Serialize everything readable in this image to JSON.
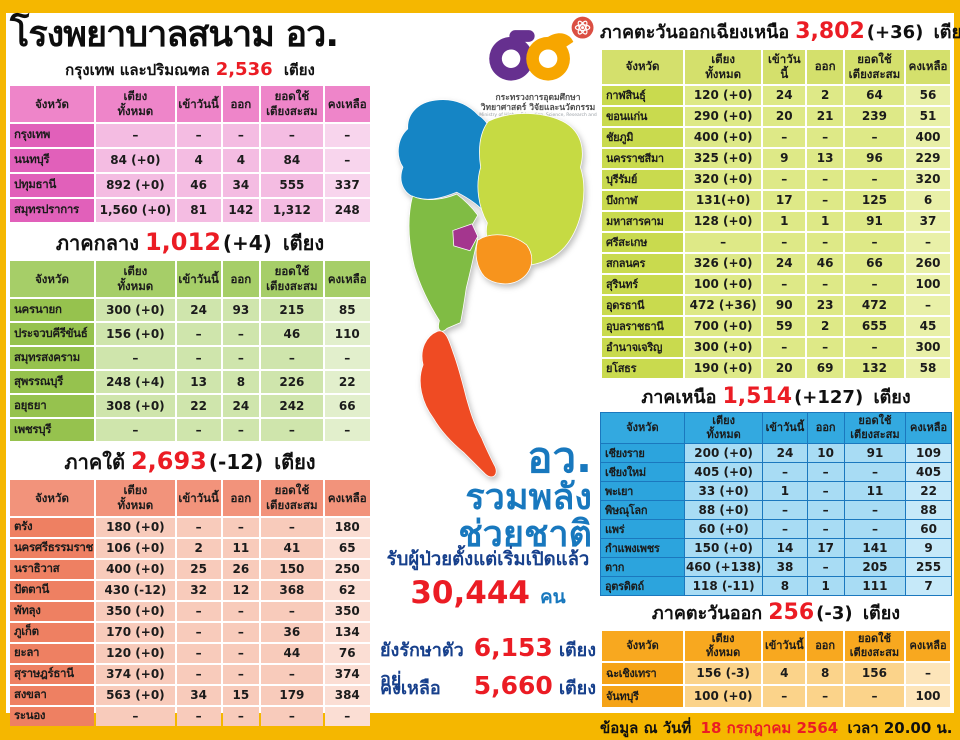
{
  "palette": {
    "frame_yellow": "#F5B700",
    "accent_red": "#EB1C24",
    "slogan_blue": "#1878BE",
    "navy_text": "#17408C",
    "theme_pink": "#EE85C9",
    "theme_green": "#A6CE68",
    "theme_salmon": "#F2937B",
    "theme_lime": "#D4E06C",
    "theme_blue": "#33A9E0",
    "theme_orange": "#F8A81F"
  },
  "header": {
    "title": "โรงพยาบาลสนาม อว."
  },
  "table_headers": [
    "จังหวัด",
    "เตียง\nทั้งหมด",
    "เข้าวันนี้",
    "ออก",
    "ยอดใช้\nเตียงสะสม",
    "คงเหลือ"
  ],
  "chart_data": [
    {
      "type": "table",
      "id": "bangkok-metro",
      "title": "กรุงเทพ และปริมณฑล",
      "total_beds": "2,536",
      "change": "",
      "unit": "เตียง",
      "theme_color": "#EE85C9",
      "columns": [
        "จังหวัด",
        "เตียง\nทั้งหมด",
        "เข้าวันนี้",
        "ออก",
        "ยอดใช้\nเตียงสะสม",
        "คงเหลือ"
      ],
      "rows": [
        [
          "กรุงเทพ",
          "–",
          "–",
          "–",
          "–",
          "–"
        ],
        [
          "นนทบุรี",
          "84 (+0)",
          "4",
          "4",
          "84",
          "–"
        ],
        [
          "ปทุมธานี",
          "892 (+0)",
          "46",
          "34",
          "555",
          "337"
        ],
        [
          "สมุทรปราการ",
          "1,560 (+0)",
          "81",
          "142",
          "1,312",
          "248"
        ]
      ]
    },
    {
      "type": "table",
      "id": "central",
      "title": "ภาคกลาง",
      "total_beds": "1,012",
      "change": "(+4)",
      "unit": "เตียง",
      "theme_color": "#A6CE68",
      "columns": [
        "จังหวัด",
        "เตียง\nทั้งหมด",
        "เข้าวันนี้",
        "ออก",
        "ยอดใช้\nเตียงสะสม",
        "คงเหลือ"
      ],
      "rows": [
        [
          "นครนายก",
          "300 (+0)",
          "24",
          "93",
          "215",
          "85"
        ],
        [
          "ประจวบคีรีขันธ์",
          "156 (+0)",
          "–",
          "–",
          "46",
          "110"
        ],
        [
          "สมุทรสงคราม",
          "–",
          "–",
          "–",
          "–",
          "–"
        ],
        [
          "สุพรรณบุรี",
          "248 (+4)",
          "13",
          "8",
          "226",
          "22"
        ],
        [
          "อยุธยา",
          "308 (+0)",
          "22",
          "24",
          "242",
          "66"
        ],
        [
          "เพชรบุรี",
          "–",
          "–",
          "–",
          "–",
          "–"
        ]
      ]
    },
    {
      "type": "table",
      "id": "south",
      "title": "ภาคใต้",
      "total_beds": "2,693",
      "change": "(-12)",
      "unit": "เตียง",
      "theme_color": "#F2937B",
      "columns": [
        "จังหวัด",
        "เตียง\nทั้งหมด",
        "เข้าวันนี้",
        "ออก",
        "ยอดใช้\nเตียงสะสม",
        "คงเหลือ"
      ],
      "rows": [
        [
          "ตรัง",
          "180 (+0)",
          "–",
          "–",
          "–",
          "180"
        ],
        [
          "นครศรีธรรมราช",
          "106 (+0)",
          "2",
          "11",
          "41",
          "65"
        ],
        [
          "นราธิวาส",
          "400 (+0)",
          "25",
          "26",
          "150",
          "250"
        ],
        [
          "ปัตตานี",
          "430 (-12)",
          "32",
          "12",
          "368",
          "62"
        ],
        [
          "พัทลุง",
          "350 (+0)",
          "–",
          "–",
          "–",
          "350"
        ],
        [
          "ภูเก็ต",
          "170 (+0)",
          "–",
          "–",
          "36",
          "134"
        ],
        [
          "ยะลา",
          "120 (+0)",
          "–",
          "–",
          "44",
          "76"
        ],
        [
          "สุราษฎร์ธานี",
          "374 (+0)",
          "–",
          "–",
          "–",
          "374"
        ],
        [
          "สงขลา",
          "563 (+0)",
          "34",
          "15",
          "179",
          "384"
        ],
        [
          "ระนอง",
          "–",
          "–",
          "–",
          "–",
          "–"
        ]
      ]
    },
    {
      "type": "table",
      "id": "northeast",
      "title": "ภาคตะวันออกเฉียงเหนือ",
      "total_beds": "3,802",
      "change": "(+36)",
      "unit": "เตียง",
      "theme_color": "#D4E06C",
      "columns": [
        "จังหวัด",
        "เตียง\nทั้งหมด",
        "เข้าวันนี้",
        "ออก",
        "ยอดใช้\nเตียงสะสม",
        "คงเหลือ"
      ],
      "rows": [
        [
          "กาฬสินธุ์",
          "120 (+0)",
          "24",
          "2",
          "64",
          "56"
        ],
        [
          "ขอนแก่น",
          "290 (+0)",
          "20",
          "21",
          "239",
          "51"
        ],
        [
          "ชัยภูมิ",
          "400 (+0)",
          "–",
          "–",
          "–",
          "400"
        ],
        [
          "นครราชสีมา",
          "325 (+0)",
          "9",
          "13",
          "96",
          "229"
        ],
        [
          "บุรีรัมย์",
          "320 (+0)",
          "–",
          "–",
          "–",
          "320"
        ],
        [
          "บึงกาฬ",
          "131(+0)",
          "17",
          "–",
          "125",
          "6"
        ],
        [
          "มหาสารคาม",
          "128 (+0)",
          "1",
          "1",
          "91",
          "37"
        ],
        [
          "ศรีสะเกษ",
          "–",
          "–",
          "–",
          "–",
          "–"
        ],
        [
          "สกลนคร",
          "326 (+0)",
          "24",
          "46",
          "66",
          "260"
        ],
        [
          "สุรินทร์",
          "100 (+0)",
          "–",
          "–",
          "–",
          "100"
        ],
        [
          "อุดรธานี",
          "472 (+36)",
          "90",
          "23",
          "472",
          "–"
        ],
        [
          "อุบลราชธานี",
          "700 (+0)",
          "59",
          "2",
          "655",
          "45"
        ],
        [
          "อำนาจเจริญ",
          "300 (+0)",
          "–",
          "–",
          "–",
          "300"
        ],
        [
          "ยโสธร",
          "190 (+0)",
          "20",
          "69",
          "132",
          "58"
        ]
      ]
    },
    {
      "type": "table",
      "id": "north",
      "title": "ภาคเหนือ",
      "total_beds": "1,514",
      "change": "(+127)",
      "unit": "เตียง",
      "theme_color": "#33A9E0",
      "columns": [
        "จังหวัด",
        "เตียง\nทั้งหมด",
        "เข้าวันนี้",
        "ออก",
        "ยอดใช้\nเตียงสะสม",
        "คงเหลือ"
      ],
      "rows": [
        [
          "เชียงราย",
          "200 (+0)",
          "24",
          "10",
          "91",
          "109"
        ],
        [
          "เชียงใหม่",
          "405 (+0)",
          "–",
          "–",
          "–",
          "405"
        ],
        [
          "พะเยา",
          "33 (+0)",
          "1",
          "–",
          "11",
          "22"
        ],
        [
          "พิษณุโลก",
          "88 (+0)",
          "–",
          "–",
          "–",
          "88"
        ],
        [
          "แพร่",
          "60 (+0)",
          "–",
          "–",
          "–",
          "60"
        ],
        [
          "กำแพงเพชร",
          "150 (+0)",
          "14",
          "17",
          "141",
          "9"
        ],
        [
          "ตาก",
          "460 (+138)",
          "38",
          "–",
          "205",
          "255"
        ],
        [
          "อุตรดิตถ์",
          "118 (-11)",
          "8",
          "1",
          "111",
          "7"
        ]
      ]
    },
    {
      "type": "table",
      "id": "east",
      "title": "ภาคตะวันออก",
      "total_beds": "256",
      "change": "(-3)",
      "unit": "เตียง",
      "theme_color": "#F8A81F",
      "columns": [
        "จังหวัด",
        "เตียง\nทั้งหมด",
        "เข้าวันนี้",
        "ออก",
        "ยอดใช้\nเตียงสะสม",
        "คงเหลือ"
      ],
      "rows": [
        [
          "ฉะเชิงเทรา",
          "156 (-3)",
          "4",
          "8",
          "156",
          "–"
        ],
        [
          "จันทบุรี",
          "100 (+0)",
          "–",
          "–",
          "–",
          "100"
        ]
      ]
    }
  ],
  "ministry_logo": {
    "caption": "กระทรวงการอุดมศึกษา\nวิทยาศาสตร์ วิจัยและนวัตกรรม",
    "caption_en": "Ministry of Higher Education, Science, Research and Innovation"
  },
  "map": {
    "region_colors": {
      "north": "#1585C5",
      "northeast": "#C6DA43",
      "central": "#80BC44",
      "bangkok": "#A4368E",
      "east": "#F7941D",
      "south": "#EF4B23"
    }
  },
  "summary": {
    "slogan_line1": "อว.",
    "slogan_line2": "รวมพลัง",
    "slogan_line3": "ช่วยชาติ",
    "admitted_label": "รับผู้ป่วยตั้งแต่เริ่มเปิดแล้ว",
    "admitted_value": "30,444",
    "admitted_unit": "คน",
    "in_care_label": "ยังรักษาตัวอยู่",
    "in_care_value": "6,153",
    "in_care_unit": "เตียง",
    "remaining_label": "คงเหลือ",
    "remaining_value": "5,660",
    "remaining_unit": "เตียง"
  },
  "footer": {
    "prefix": "ข้อมูล ณ วันที่",
    "date": "18 กรกฎาคม 2564",
    "suffix": "เวลา  20.00 น."
  }
}
